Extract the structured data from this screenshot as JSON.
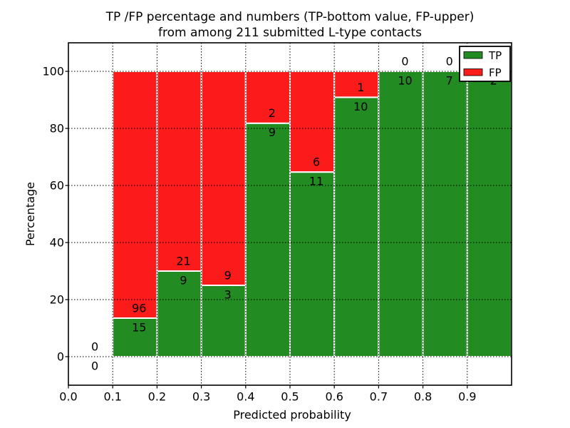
{
  "chart_data": {
    "type": "bar",
    "stacked": true,
    "title_line1": "TP /FP percentage and numbers (TP-bottom value, FP-upper)",
    "title_line2": "from among 211 submitted L-type contacts",
    "xlabel": "Predicted probability",
    "ylabel": "Percentage",
    "xlim": [
      0.0,
      1.0
    ],
    "ylim": [
      -10,
      110
    ],
    "x_tick_labels": [
      "0.0",
      "0.1",
      "0.2",
      "0.3",
      "0.4",
      "0.5",
      "0.6",
      "0.7",
      "0.8",
      "0.9"
    ],
    "x_tick_values": [
      0.0,
      0.1,
      0.2,
      0.3,
      0.4,
      0.5,
      0.6,
      0.7,
      0.8,
      0.9
    ],
    "y_tick_labels": [
      "0",
      "20",
      "40",
      "60",
      "80",
      "100"
    ],
    "y_tick_values": [
      0,
      20,
      40,
      60,
      80,
      100
    ],
    "grid": "dotted",
    "bins": [
      {
        "range": [
          0.0,
          0.1
        ],
        "tp": 0,
        "fp": 0,
        "tp_pct": 0,
        "total_pct": 0
      },
      {
        "range": [
          0.1,
          0.2
        ],
        "tp": 15,
        "fp": 96,
        "tp_pct": 13.51,
        "total_pct": 100
      },
      {
        "range": [
          0.2,
          0.3
        ],
        "tp": 9,
        "fp": 21,
        "tp_pct": 30.0,
        "total_pct": 100
      },
      {
        "range": [
          0.3,
          0.4
        ],
        "tp": 3,
        "fp": 9,
        "tp_pct": 25.0,
        "total_pct": 100
      },
      {
        "range": [
          0.4,
          0.5
        ],
        "tp": 9,
        "fp": 2,
        "tp_pct": 81.82,
        "total_pct": 100
      },
      {
        "range": [
          0.5,
          0.6
        ],
        "tp": 11,
        "fp": 6,
        "tp_pct": 64.71,
        "total_pct": 100
      },
      {
        "range": [
          0.6,
          0.7
        ],
        "tp": 10,
        "fp": 1,
        "tp_pct": 90.91,
        "total_pct": 100
      },
      {
        "range": [
          0.7,
          0.8
        ],
        "tp": 10,
        "fp": 0,
        "tp_pct": 100,
        "total_pct": 100
      },
      {
        "range": [
          0.8,
          0.9
        ],
        "tp": 7,
        "fp": 0,
        "tp_pct": 100,
        "total_pct": 100
      },
      {
        "range": [
          0.9,
          1.0
        ],
        "tp": 2,
        "fp": 0,
        "tp_pct": 100,
        "total_pct": 100
      }
    ],
    "legend": {
      "position": "upper right",
      "entries": [
        {
          "label": "TP",
          "color": "#228B22"
        },
        {
          "label": "FP",
          "color": "#FB1B1B"
        }
      ]
    },
    "colors": {
      "tp": "#228B22",
      "fp": "#FB1B1B",
      "bar_edge": "#ffffff",
      "grid": "#000000",
      "spine": "#000000",
      "background": "#ffffff"
    }
  }
}
